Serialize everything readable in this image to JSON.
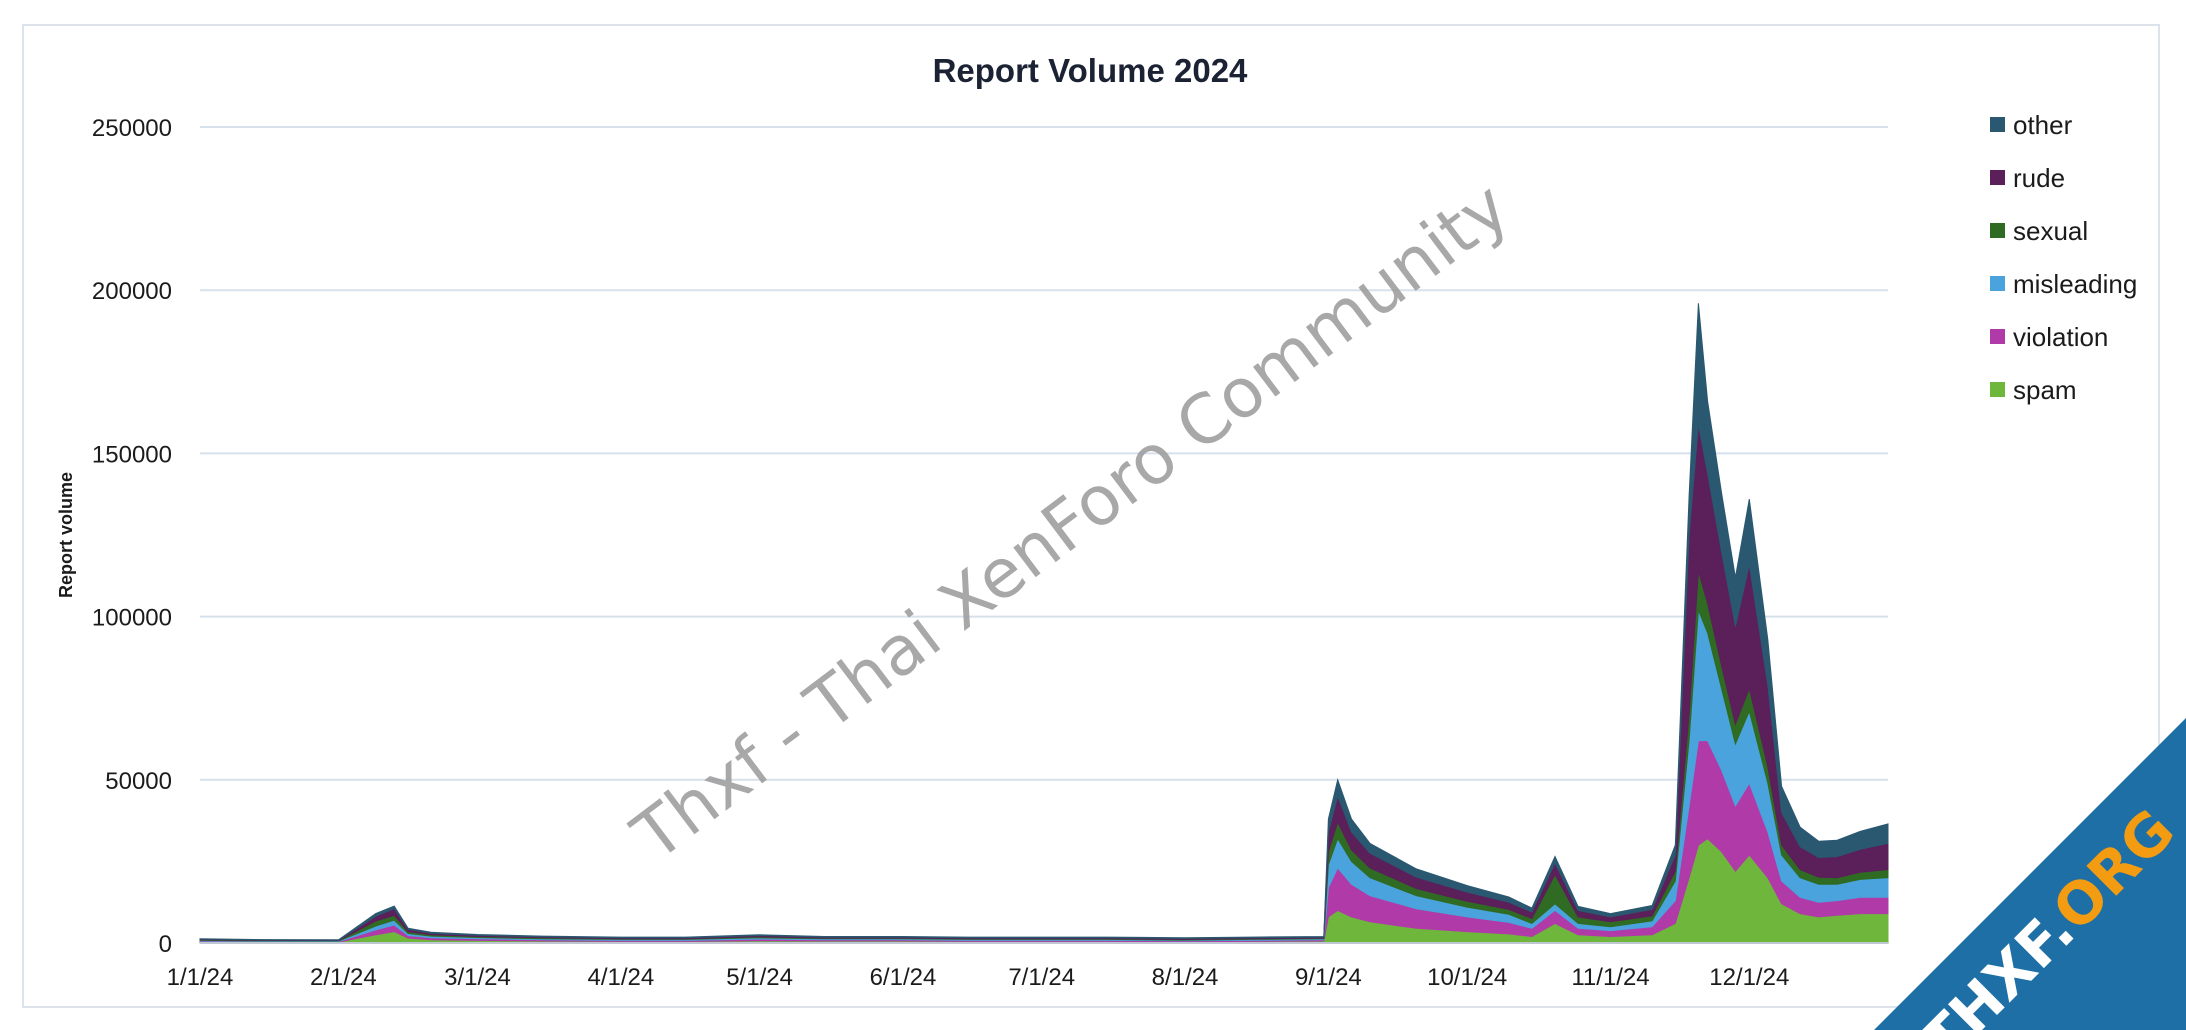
{
  "chart_data": {
    "type": "area",
    "stacked": true,
    "title": "Report Volume 2024",
    "xlabel": "",
    "ylabel": "Report volume",
    "x_ticks": [
      "1/1/24",
      "2/1/24",
      "3/1/24",
      "4/1/24",
      "5/1/24",
      "6/1/24",
      "7/1/24",
      "8/1/24",
      "9/1/24",
      "10/1/24",
      "11/1/24",
      "12/1/24"
    ],
    "x_range": [
      "1/1/24",
      "12/31/24"
    ],
    "ylim": [
      0,
      250000
    ],
    "y_ticks": [
      0,
      50000,
      100000,
      150000,
      200000,
      250000
    ],
    "grid": true,
    "legend_position": "right",
    "x": [
      "1/1/24",
      "1/15/24",
      "1/31/24",
      "2/8/24",
      "2/12/24",
      "2/15/24",
      "2/20/24",
      "3/1/24",
      "3/15/24",
      "4/1/24",
      "4/15/24",
      "5/1/24",
      "5/15/24",
      "6/1/24",
      "6/15/24",
      "7/1/24",
      "7/15/24",
      "8/1/24",
      "8/15/24",
      "8/31/24",
      "9/1/24",
      "9/3/24",
      "9/6/24",
      "9/10/24",
      "9/20/24",
      "10/1/24",
      "10/10/24",
      "10/15/24",
      "10/20/24",
      "10/25/24",
      "11/1/24",
      "11/10/24",
      "11/15/24",
      "11/18/24",
      "11/20/24",
      "11/22/24",
      "11/25/24",
      "11/28/24",
      "12/1/24",
      "12/5/24",
      "12/8/24",
      "12/12/24",
      "12/16/24",
      "12/20/24",
      "12/25/24",
      "12/31/24"
    ],
    "series": [
      {
        "name": "spam",
        "color": "#6fb63c",
        "values": [
          400,
          300,
          300,
          2500,
          3500,
          1500,
          1000,
          800,
          600,
          500,
          500,
          700,
          600,
          600,
          500,
          500,
          500,
          400,
          500,
          600,
          8000,
          10000,
          8000,
          6500,
          4500,
          3500,
          2800,
          2000,
          6000,
          2500,
          2000,
          2500,
          6000,
          20000,
          30000,
          32000,
          28000,
          22000,
          27000,
          20000,
          12000,
          9000,
          8000,
          8500,
          9000,
          9000
        ]
      },
      {
        "name": "violation",
        "color": "#b03aa8",
        "values": [
          200,
          200,
          150,
          1500,
          2000,
          800,
          600,
          500,
          400,
          300,
          300,
          500,
          400,
          400,
          300,
          300,
          300,
          300,
          300,
          400,
          9000,
          13000,
          10000,
          8000,
          6000,
          4500,
          3500,
          2500,
          4000,
          2000,
          1800,
          2500,
          7000,
          22000,
          32000,
          30000,
          25000,
          20000,
          22000,
          14000,
          7000,
          5000,
          4500,
          4500,
          5000,
          5000
        ]
      },
      {
        "name": "misleading",
        "color": "#4aa3dc",
        "values": [
          200,
          150,
          150,
          1200,
          1500,
          600,
          500,
          400,
          300,
          300,
          300,
          400,
          300,
          300,
          300,
          300,
          300,
          200,
          300,
          300,
          7000,
          9000,
          7000,
          5500,
          4000,
          3000,
          2500,
          1500,
          2000,
          1500,
          1200,
          1800,
          6000,
          20000,
          40000,
          33000,
          25000,
          19000,
          22000,
          15000,
          8000,
          6000,
          5500,
          5000,
          5500,
          6000
        ]
      },
      {
        "name": "sexual",
        "color": "#2f6b22",
        "values": [
          200,
          150,
          150,
          1500,
          1500,
          600,
          400,
          300,
          300,
          200,
          200,
          300,
          200,
          200,
          200,
          200,
          200,
          200,
          200,
          200,
          4000,
          5000,
          3500,
          3000,
          2200,
          1800,
          1500,
          1500,
          9000,
          2000,
          1500,
          1500,
          3000,
          8000,
          12000,
          9000,
          7000,
          6000,
          7000,
          5000,
          3000,
          2500,
          2200,
          2000,
          2200,
          2500
        ]
      },
      {
        "name": "rude",
        "color": "#5b1f5a",
        "values": [
          200,
          150,
          150,
          1500,
          2000,
          700,
          500,
          400,
          300,
          300,
          300,
          400,
          300,
          300,
          300,
          300,
          300,
          300,
          300,
          300,
          6000,
          8000,
          5500,
          4500,
          3500,
          2800,
          2200,
          2000,
          3500,
          2000,
          1500,
          2000,
          5000,
          55000,
          45000,
          40000,
          35000,
          30000,
          38000,
          25000,
          10000,
          7000,
          6000,
          6500,
          7000,
          8000
        ]
      },
      {
        "name": "other",
        "color": "#2a5870",
        "values": [
          100,
          100,
          100,
          800,
          800,
          300,
          300,
          200,
          200,
          200,
          200,
          200,
          200,
          200,
          200,
          200,
          200,
          200,
          200,
          200,
          4000,
          5000,
          4000,
          3000,
          2500,
          2000,
          1600,
          1200,
          2000,
          1200,
          1000,
          1200,
          3000,
          12000,
          37000,
          22000,
          18000,
          15000,
          20000,
          14000,
          8000,
          6000,
          5000,
          5000,
          5500,
          6000
        ]
      }
    ],
    "legend_order": [
      "other",
      "rude",
      "sexual",
      "misleading",
      "violation",
      "spam"
    ]
  },
  "watermark": {
    "text": "Thxf - Thai XenForo Community"
  },
  "badge": {
    "text_white": "THXF.",
    "text_orange": "ORG",
    "bg_color": "#1d6fa5",
    "accent_color": "#f39c12"
  }
}
